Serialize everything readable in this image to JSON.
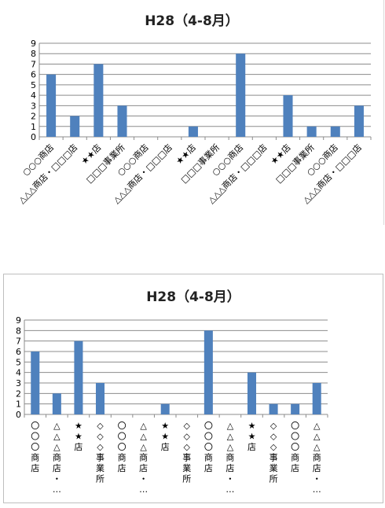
{
  "chart_data": [
    {
      "type": "bar",
      "title": "H28（4-8月）",
      "categories": [
        "○○○商店",
        "△△△商店・□□□店",
        "★★店",
        "□□□事業所",
        "○○○商店",
        "△△△商店・□□□店",
        "★★店",
        "□□□事業所",
        "○○○商店",
        "△△△商店・□□□店",
        "★★店",
        "□□□事業所",
        "○○○商店",
        "△△△商店・□□□店"
      ],
      "values": [
        6,
        2,
        7,
        3,
        0,
        0,
        1,
        0,
        8,
        0,
        4,
        1,
        1,
        3
      ],
      "ylim": [
        0,
        9
      ],
      "yticks": [
        "0",
        "1",
        "2",
        "3",
        "4",
        "5",
        "6",
        "7",
        "8",
        "9"
      ],
      "grid": true,
      "bar_color": "#4f81bd"
    },
    {
      "type": "bar",
      "title": "H28（4-8月）",
      "categories": [
        "〇〇〇商店",
        "△△△商店・…",
        "★★店",
        "◇◇◇事業所",
        "〇〇〇商店",
        "△△△商店・…",
        "★★店",
        "◇◇◇事業所",
        "〇〇〇商店",
        "△△△商店・…",
        "★★店",
        "◇◇◇事業所",
        "〇〇〇商店",
        "△△△商店・…"
      ],
      "values": [
        6,
        2,
        7,
        3,
        0,
        0,
        1,
        0,
        8,
        0,
        4,
        1,
        1,
        3
      ],
      "ylim": [
        0,
        9
      ],
      "yticks": [
        "0",
        "1",
        "2",
        "3",
        "4",
        "5",
        "6",
        "7",
        "8",
        "9"
      ],
      "grid": true,
      "bar_color": "#4f81bd"
    }
  ]
}
